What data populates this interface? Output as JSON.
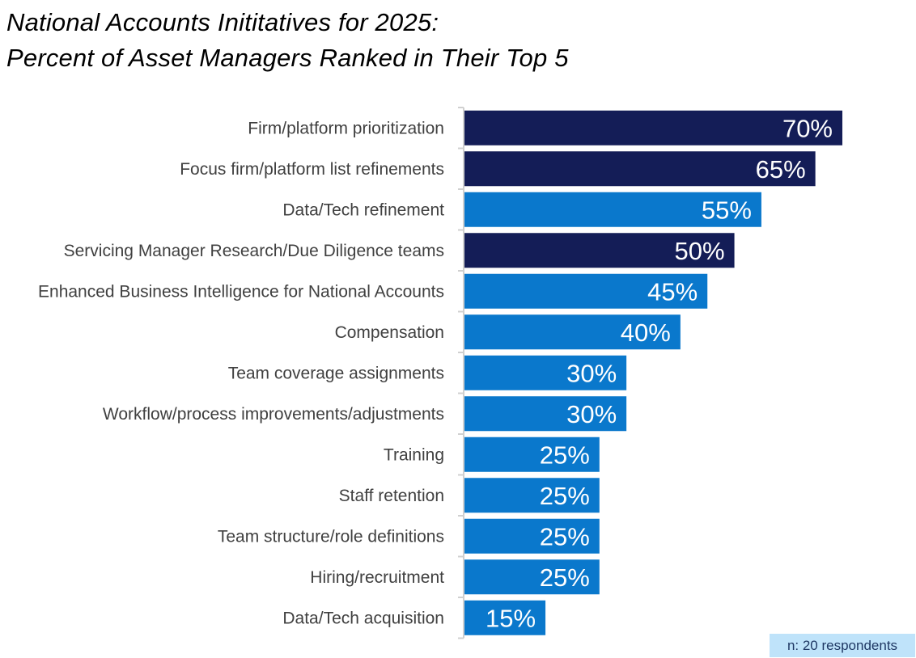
{
  "title": {
    "line1": "National Accounts Inititatives for 2025:",
    "line2": "Percent of Asset Managers Ranked in Their Top 5"
  },
  "note": "n: 20 respondents",
  "colors": {
    "highlight": "#141d57",
    "standard": "#0a78cc",
    "axis": "#d0d0d0",
    "label_text": "#404040",
    "value_text": "#ffffff"
  },
  "chart_data": {
    "type": "bar",
    "orientation": "horizontal",
    "title": "National Accounts Inititatives for 2025: Percent of Asset Managers Ranked in Their Top 5",
    "xlabel": "",
    "ylabel": "",
    "xlim": [
      0,
      70
    ],
    "grid": false,
    "value_suffix": "%",
    "categories": [
      "Firm/platform prioritization",
      "Focus firm/platform list refinements",
      "Data/Tech refinement",
      "Servicing Manager Research/Due Diligence teams",
      "Enhanced Business Intelligence for National Accounts",
      "Compensation",
      "Team coverage assignments",
      "Workflow/process improvements/adjustments",
      "Training",
      "Staff retention",
      "Team structure/role definitions",
      "Hiring/recruitment",
      "Data/Tech acquisition"
    ],
    "values": [
      70,
      65,
      55,
      50,
      45,
      40,
      30,
      30,
      25,
      25,
      25,
      25,
      15
    ],
    "highlighted": [
      true,
      true,
      false,
      true,
      false,
      false,
      false,
      false,
      false,
      false,
      false,
      false,
      false
    ]
  }
}
